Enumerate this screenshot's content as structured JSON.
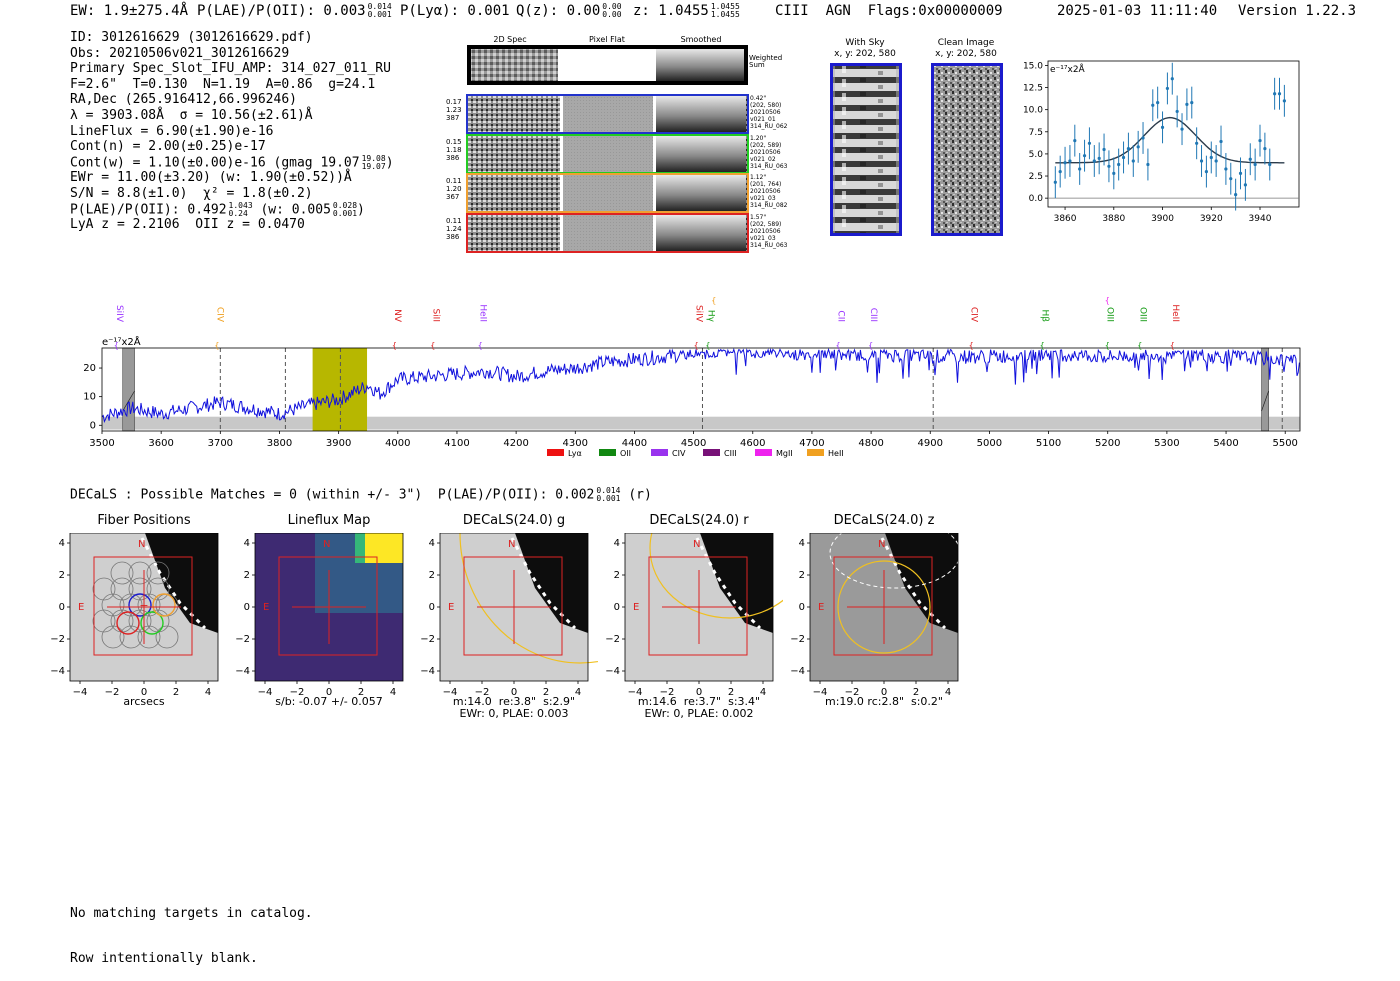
{
  "header": {
    "ew_label": "EW: 1.9±275.4Å",
    "plae_label": "P(LAE)/P(OII): 0.003",
    "plae_hi": "0.014",
    "plae_lo": "0.001",
    "plya_label": "P(Lyα): 0.001",
    "qz_label": "Q(z): 0.00",
    "qz_hi": "0.00",
    "qz_lo": "0.00",
    "z_label": "z: 1.0455",
    "z_hi": "1.0455",
    "z_lo": "1.0455",
    "line_tag": "CIII  AGN  Flags:0x00000009",
    "datetime": "2025-01-03 11:11:40",
    "version": "Version 1.22.3"
  },
  "info": {
    "id": "ID: 3012616629 (3012616629.pdf)",
    "obs": "Obs: 20210506v021_3012616629",
    "primary": "Primary Spec_Slot_IFU_AMP: 314_027_011_RU",
    "params": "F=2.6\"  T=0.130  N=1.19  A=0.86  g=24.1",
    "radec": "RA,Dec (265.916412,66.996246)",
    "lambda": "λ = 3903.08Å  σ = 10.56(±2.61)Å",
    "lineflux": "LineFlux = 6.90(±1.90)e-16",
    "contn": "Cont(n) = 2.00(±0.25)e-17",
    "contw": "Cont(w) = 1.10(±0.00)e-16 (gmag 19.07",
    "contw_hi": "19.08",
    "contw_lo": "19.07",
    "contw_end": ")",
    "ewr": "EWr = 11.00(±3.20) (w: 1.90(±0.52))Å",
    "sn": "S/N = 8.8(±1.0)  χ² = 1.8(±0.2)",
    "plae": "P(LAE)/P(OII): 0.492",
    "plae_hi": "1.043",
    "plae_lo": "0.24",
    "plae_w": "(w: 0.005",
    "plae_w_hi": "0.028",
    "plae_w_lo": "0.001",
    "plae_w_end": ")",
    "lya": "LyA z = 2.2106  OII z = 0.0470"
  },
  "cutouts": {
    "col_2d": "2D Spec",
    "col_flat": "Pixel Flat",
    "col_smooth": "Smoothed",
    "weighted_sum": "Weighted\nSum",
    "rows": [
      {
        "left": "0.17\n1.23\n387",
        "right": "0.42\"\n(202, 580)\n20210506\nv021_01\n314_RU_062",
        "color": "#2233cc"
      },
      {
        "left": "0.15\n1.18\n386",
        "right": "1.20\"\n(202, 589)\n20210506\nv021_02\n314_RU_063",
        "color": "#22cc22"
      },
      {
        "left": "0.11\n1.20\n367",
        "right": "1.12\"\n(201, 764)\n20210506\nv021_03\n314_RU_082",
        "color": "#f0a030"
      },
      {
        "left": "0.11\n1.24\n386",
        "right": "1.57\"\n(202, 589)\n20210506\nv021_03\n314_RU_063",
        "color": "#dd2222"
      }
    ]
  },
  "sky": {
    "with_sky_title": "With Sky",
    "with_sky_xy": "x, y: 202, 580",
    "clean_title": "Clean Image",
    "clean_xy": "x, y: 202, 580"
  },
  "line_fit": {
    "ylabel": "e⁻¹⁷x2Å",
    "xticks": [
      "3860",
      "3880",
      "3900",
      "3920",
      "3940"
    ],
    "yticks": [
      "15.0",
      "12.5",
      "10.0",
      "7.5",
      "5.0",
      "2.5",
      "0.0"
    ]
  },
  "spectrum": {
    "ylabel": "e⁻¹⁷x2Å",
    "xticks": [
      "3500",
      "3600",
      "3700",
      "3800",
      "3900",
      "4000",
      "4100",
      "4200",
      "4300",
      "4400",
      "4500",
      "4600",
      "4700",
      "4800",
      "4900",
      "5000",
      "5100",
      "5200",
      "5300",
      "5400",
      "5500"
    ],
    "yticks": [
      "20",
      "10",
      "0"
    ],
    "line_labels": [
      {
        "text": "SiIV",
        "color": "#9933ff"
      },
      {
        "text": "CIV",
        "color": "#f0a020"
      },
      {
        "text": "NV",
        "color": "#dd2222"
      },
      {
        "text": "SiII",
        "color": "#dd2222"
      },
      {
        "text": "HeII",
        "color": "#9933ff"
      },
      {
        "text": "SiIV",
        "color": "#dd2222"
      },
      {
        "text": "CIII",
        "color": "#f0a020"
      },
      {
        "text": "Hγ",
        "color": "#119911"
      },
      {
        "text": "CII",
        "color": "#9933ff"
      },
      {
        "text": "CIII",
        "color": "#9933ff"
      },
      {
        "text": "CIV",
        "color": "#dd2222"
      },
      {
        "text": "Hβ",
        "color": "#119911"
      },
      {
        "text": "OII",
        "color": "#ee22ee"
      },
      {
        "text": "OIII",
        "color": "#119911"
      },
      {
        "text": "OIII",
        "color": "#119911"
      },
      {
        "text": "HeII",
        "color": "#dd2222"
      }
    ],
    "legend": [
      {
        "label": "Lyα",
        "color": "#ee1111"
      },
      {
        "label": "OII",
        "color": "#118811"
      },
      {
        "label": "CIV",
        "color": "#9933ee"
      },
      {
        "label": "CIII",
        "color": "#771177"
      },
      {
        "label": "MgII",
        "color": "#ee22ee"
      },
      {
        "label": "HeII",
        "color": "#f0a020"
      }
    ]
  },
  "decals": {
    "summary": "DECaLS : Possible Matches = 0 (within +/- 3\")  P(LAE)/P(OII): 0.002",
    "summary_hi": "0.014",
    "summary_lo": "0.001",
    "summary_end": "(r)",
    "compass_n": "N",
    "compass_e": "E",
    "xticks": [
      "−4",
      "−2",
      "0",
      "2",
      "4"
    ],
    "yticks": [
      "4",
      "2",
      "0",
      "−2",
      "−4"
    ],
    "panels": [
      {
        "title": "Fiber Positions",
        "caption": "arcsecs"
      },
      {
        "title": "Lineflux Map",
        "caption": "s/b: -0.07 +/- 0.057"
      },
      {
        "title": "DECaLS(24.0) g",
        "caption": "m:14.0  re:3.8\"  s:2.9\"\nEWr: 0, PLAE: 0.003"
      },
      {
        "title": "DECaLS(24.0) r",
        "caption": "m:14.6  re:3.7\"  s:3.4\"\nEWr: 0, PLAE: 0.002"
      },
      {
        "title": "DECaLS(24.0) z",
        "caption": "m:19.0 rc:2.8\"  s:0.2\""
      }
    ]
  },
  "footer": {
    "line1": "No matching targets in catalog.",
    "line2": "Row intentionally blank."
  },
  "chart_data": [
    {
      "type": "scatter",
      "title": "",
      "xlabel": "",
      "ylabel": "e-17 x2Å",
      "xlim": [
        3853,
        3956
      ],
      "ylim": [
        -1,
        15.5
      ],
      "x": [
        3856,
        3858,
        3860,
        3862,
        3864,
        3866,
        3868,
        3870,
        3872,
        3874,
        3876,
        3878,
        3880,
        3882,
        3884,
        3886,
        3888,
        3890,
        3892,
        3894,
        3896,
        3898,
        3900,
        3902,
        3904,
        3906,
        3908,
        3910,
        3912,
        3914,
        3916,
        3918,
        3920,
        3922,
        3924,
        3926,
        3928,
        3930,
        3932,
        3934,
        3936,
        3938,
        3940,
        3942,
        3944,
        3946,
        3948,
        3950
      ],
      "y": [
        1.8,
        3.0,
        4.0,
        4.2,
        6.5,
        3.3,
        4.8,
        6.2,
        4.2,
        4.5,
        5.5,
        3.6,
        2.8,
        3.8,
        4.6,
        5.6,
        4.2,
        5.8,
        6.8,
        3.8,
        10.5,
        10.8,
        8.0,
        12.4,
        13.5,
        9.8,
        7.8,
        10.6,
        10.8,
        6.2,
        4.2,
        3.0,
        4.6,
        4.2,
        6.4,
        3.3,
        2.2,
        0.4,
        2.8,
        1.5,
        4.4,
        3.8,
        6.5,
        5.6,
        3.8,
        11.8,
        11.8,
        11.0
      ],
      "yerr": 1.8,
      "fit": {
        "model": "gaussian",
        "center": 3903.08,
        "sigma": 10.56,
        "amplitude": 5.1,
        "continuum": 4.0
      },
      "xticks": [
        3860,
        3880,
        3900,
        3920,
        3940
      ],
      "yticks": [
        0,
        2.5,
        5,
        7.5,
        10,
        12.5,
        15
      ]
    },
    {
      "type": "line",
      "title": "",
      "xlabel": "",
      "ylabel": "e-17 x2Å",
      "xlim": [
        3500,
        5525
      ],
      "ylim": [
        -2,
        27
      ],
      "series": [
        {
          "name": "spectrum",
          "color": "#1111dd"
        }
      ],
      "x": [
        3500,
        3550,
        3600,
        3650,
        3700,
        3750,
        3800,
        3850,
        3900,
        3950,
        3970,
        4000,
        4050,
        4100,
        4150,
        4200,
        4250,
        4300,
        4350,
        4400,
        4450,
        4500,
        4550,
        4600,
        4700,
        4800,
        4900,
        5000,
        5100,
        5200,
        5300,
        5400,
        5500,
        5525
      ],
      "y": [
        3,
        6,
        4,
        6,
        8,
        6,
        4,
        7,
        9,
        14,
        11,
        16,
        17,
        18,
        19,
        17,
        19,
        20,
        22,
        23,
        24,
        25,
        26,
        26,
        25,
        25,
        24,
        24,
        25,
        24,
        25,
        24,
        23,
        22
      ],
      "highlight_band": [
        3856,
        3948
      ],
      "dashed_lines": [
        3700,
        3810,
        3903,
        4515,
        4905,
        5495
      ],
      "masked_regions": [
        [
          3535,
          3555
        ],
        [
          5460,
          5472
        ]
      ],
      "xticks": [
        3500,
        3600,
        3700,
        3800,
        3900,
        4000,
        4100,
        4200,
        4300,
        4400,
        4500,
        4600,
        4700,
        4800,
        4900,
        5000,
        5100,
        5200,
        5300,
        5400,
        5500
      ],
      "yticks": [
        0,
        10,
        20
      ],
      "line_label_wavelengths": [
        3525,
        3695,
        3995,
        4060,
        4140,
        4505,
        4535,
        4525,
        4745,
        4800,
        4970,
        5090,
        5200,
        5200,
        5255,
        5310
      ]
    }
  ]
}
